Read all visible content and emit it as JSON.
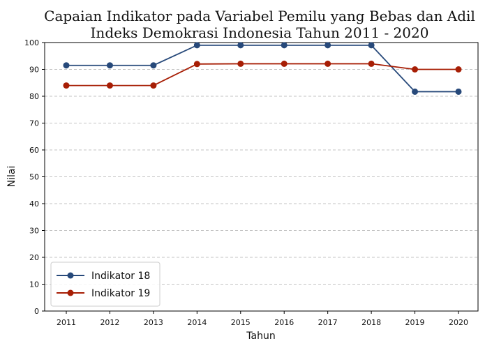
{
  "chart_data": {
    "type": "line",
    "title_lines": [
      "Capaian Indikator pada Variabel Pemilu yang Bebas dan Adil",
      "Indeks Demokrasi Indonesia Tahun 2011 - 2020"
    ],
    "xlabel": "Tahun",
    "ylabel": "Nilai",
    "categories": [
      "2011",
      "2012",
      "2013",
      "2014",
      "2015",
      "2016",
      "2017",
      "2018",
      "2019",
      "2020"
    ],
    "ylim": [
      0,
      100
    ],
    "yticks": [
      0,
      10,
      20,
      30,
      40,
      50,
      60,
      70,
      80,
      90,
      100
    ],
    "grid": "horizontal-dashed",
    "legend_position": "bottom-left",
    "series": [
      {
        "name": "Indikator 18",
        "color": "#27497a",
        "values": [
          91.5,
          91.5,
          91.5,
          99,
          99,
          99,
          99,
          99,
          81.7,
          81.7
        ]
      },
      {
        "name": "Indikator 19",
        "color": "#a71e05",
        "values": [
          84,
          84,
          84,
          92,
          92.1,
          92.1,
          92.1,
          92.1,
          90,
          90
        ]
      }
    ]
  }
}
